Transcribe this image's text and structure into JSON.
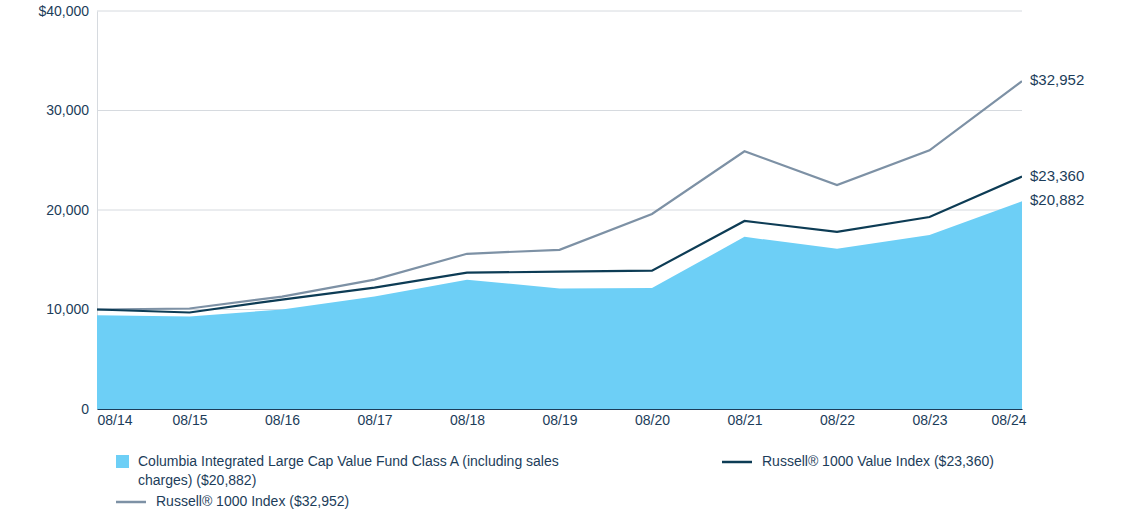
{
  "chart_data": {
    "type": "line",
    "categories": [
      "08/14",
      "08/15",
      "08/16",
      "08/17",
      "08/18",
      "08/19",
      "08/20",
      "08/21",
      "08/22",
      "08/23",
      "08/24"
    ],
    "series": [
      {
        "name": "Columbia Integrated Large Cap Value Fund Class A (including sales charges) ($20,882)",
        "type": "area",
        "color": "#6dcff6",
        "values": [
          9425,
          9300,
          10000,
          11300,
          13000,
          12100,
          12150,
          17300,
          16100,
          17500,
          20882
        ],
        "data_labels": true,
        "value_labels": [
          null,
          null,
          null,
          null,
          null,
          null,
          null,
          null,
          null,
          null,
          "$20,882"
        ]
      },
      {
        "name": "Russell® 1000 Value Index ($23,360)",
        "type": "line",
        "color": "#0d3c55",
        "values": [
          10000,
          9700,
          11000,
          12200,
          13700,
          13800,
          13900,
          18900,
          17800,
          19300,
          23360
        ],
        "data_labels": true,
        "value_labels": [
          null,
          null,
          null,
          null,
          null,
          null,
          null,
          null,
          null,
          null,
          "$23,360"
        ]
      },
      {
        "name": "Russell® 1000 Index ($32,952)",
        "type": "line",
        "color": "#7d91a5",
        "values": [
          10000,
          10100,
          11300,
          13000,
          15600,
          16000,
          19600,
          25900,
          22500,
          26000,
          32952
        ],
        "data_labels": true,
        "value_labels": [
          null,
          null,
          null,
          null,
          null,
          null,
          null,
          null,
          null,
          null,
          "$32,952"
        ]
      }
    ],
    "ylim": [
      0,
      40000
    ],
    "yticks": [
      0,
      {
        "value": 10000,
        "label": "10,000"
      },
      {
        "value": 20000,
        "label": "20,000"
      },
      {
        "value": 30000,
        "label": "30,000"
      },
      {
        "value": 40000,
        "label": "$40,000"
      }
    ],
    "grid": true,
    "legend": "bottom"
  }
}
